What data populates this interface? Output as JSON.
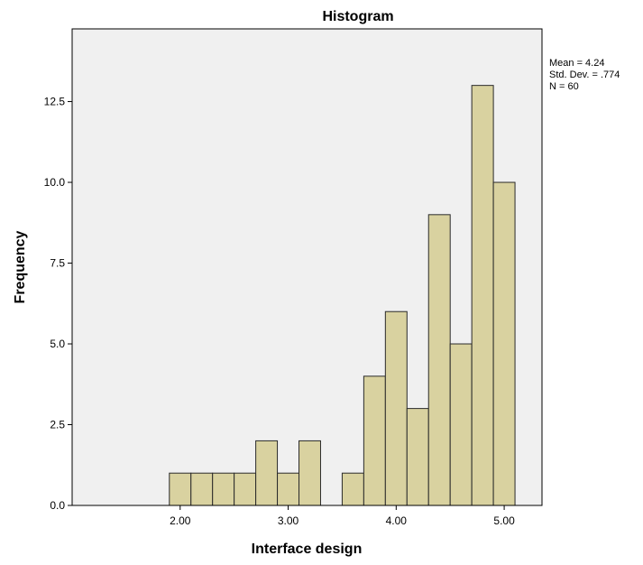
{
  "chart_data": {
    "type": "bar",
    "subtype": "histogram",
    "title": "Histogram",
    "xlabel": "Interface design",
    "ylabel": "Frequency",
    "bin_width": 0.2,
    "bins": [
      {
        "start": 1.9,
        "end": 2.1,
        "count": 1
      },
      {
        "start": 2.1,
        "end": 2.3,
        "count": 1
      },
      {
        "start": 2.3,
        "end": 2.5,
        "count": 1
      },
      {
        "start": 2.5,
        "end": 2.7,
        "count": 1
      },
      {
        "start": 2.7,
        "end": 2.9,
        "count": 2
      },
      {
        "start": 2.9,
        "end": 3.1,
        "count": 1
      },
      {
        "start": 3.1,
        "end": 3.3,
        "count": 2
      },
      {
        "start": 3.3,
        "end": 3.5,
        "count": 0
      },
      {
        "start": 3.5,
        "end": 3.7,
        "count": 1
      },
      {
        "start": 3.7,
        "end": 3.9,
        "count": 4
      },
      {
        "start": 3.9,
        "end": 4.1,
        "count": 6
      },
      {
        "start": 4.1,
        "end": 4.3,
        "count": 3
      },
      {
        "start": 4.3,
        "end": 4.5,
        "count": 9
      },
      {
        "start": 4.5,
        "end": 4.7,
        "count": 5
      },
      {
        "start": 4.7,
        "end": 4.9,
        "count": 13
      },
      {
        "start": 4.9,
        "end": 5.1,
        "count": 10
      }
    ],
    "xlim": [
      1.0,
      5.35
    ],
    "ylim": [
      0,
      14.75
    ],
    "xticks": [
      {
        "value": 2.0,
        "label": "2.00"
      },
      {
        "value": 3.0,
        "label": "3.00"
      },
      {
        "value": 4.0,
        "label": "4.00"
      },
      {
        "value": 5.0,
        "label": "5.00"
      }
    ],
    "yticks": [
      {
        "value": 0,
        "label": "0.0"
      },
      {
        "value": 2.5,
        "label": "2.5"
      },
      {
        "value": 5,
        "label": "5.0"
      },
      {
        "value": 7.5,
        "label": "7.5"
      },
      {
        "value": 10,
        "label": "10.0"
      },
      {
        "value": 12.5,
        "label": "12.5"
      }
    ],
    "stats": {
      "mean": "Mean = 4.24",
      "std_dev": "Std. Dev. = .774",
      "n": "N = 60"
    },
    "grid": false,
    "colors": {
      "bar_fill": "#D9D2A0",
      "bar_stroke": "#2a2a2a",
      "plot_background": "#F0F0F0",
      "frame": "#000000"
    }
  }
}
